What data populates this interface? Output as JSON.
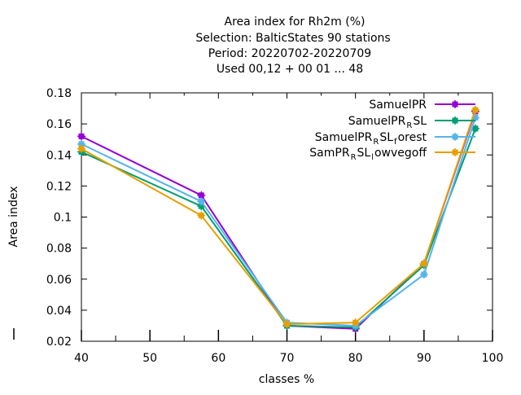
{
  "chart_data": {
    "type": "line",
    "title_lines": [
      "Area index  for Rh2m (%)",
      "Selection: BalticStates     90 stations",
      "Period: 20220702-20220709",
      "Used  00,12  + 00 01 ... 48"
    ],
    "xlabel": "classes %",
    "ylabel": "Area index",
    "xlim": [
      40,
      100
    ],
    "ylim": [
      0.02,
      0.18
    ],
    "x_ticks": [
      "40",
      "50",
      "60",
      "70",
      "80",
      "90",
      "100"
    ],
    "y_ticks": [
      "0.02",
      "0.04",
      "0.06",
      "0.08",
      "0.1",
      "0.12",
      "0.14",
      "0.16",
      "0.18"
    ],
    "grid": false,
    "legend_position": "top-right",
    "series": [
      {
        "name": "SamuelPR",
        "legend": {
          "main": "SamuelPR",
          "parts": []
        },
        "color": "#9400d3",
        "x": [
          40,
          57.5,
          70,
          80,
          90,
          97.5
        ],
        "y": [
          0.152,
          0.114,
          0.03,
          0.028,
          0.07,
          0.168
        ]
      },
      {
        "name": "SamuelPR_RSL",
        "legend": {
          "main": "SamuelPR",
          "parts": [
            [
              "R",
              "SL"
            ]
          ]
        },
        "color": "#009e73",
        "x": [
          40,
          57.5,
          70,
          80,
          90,
          97.5
        ],
        "y": [
          0.142,
          0.107,
          0.03,
          0.029,
          0.069,
          0.157
        ]
      },
      {
        "name": "SamuelPR_RSL_forest",
        "legend": {
          "main": "SamuelPR",
          "parts": [
            [
              "R",
              "SL"
            ],
            [
              "f",
              "orest"
            ]
          ]
        },
        "color": "#56b4e9",
        "x": [
          40,
          57.5,
          70,
          80,
          90,
          97.5
        ],
        "y": [
          0.147,
          0.11,
          0.032,
          0.03,
          0.063,
          0.164
        ]
      },
      {
        "name": "SamPR_RSL_lowvegoff",
        "legend": {
          "main": "SamPR",
          "parts": [
            [
              "R",
              "SL"
            ],
            [
              "l",
              "owvegoff"
            ]
          ]
        },
        "color": "#e69f00",
        "x": [
          40,
          57.5,
          70,
          80,
          90,
          97.5
        ],
        "y": [
          0.144,
          0.101,
          0.031,
          0.032,
          0.07,
          0.169
        ]
      }
    ]
  }
}
